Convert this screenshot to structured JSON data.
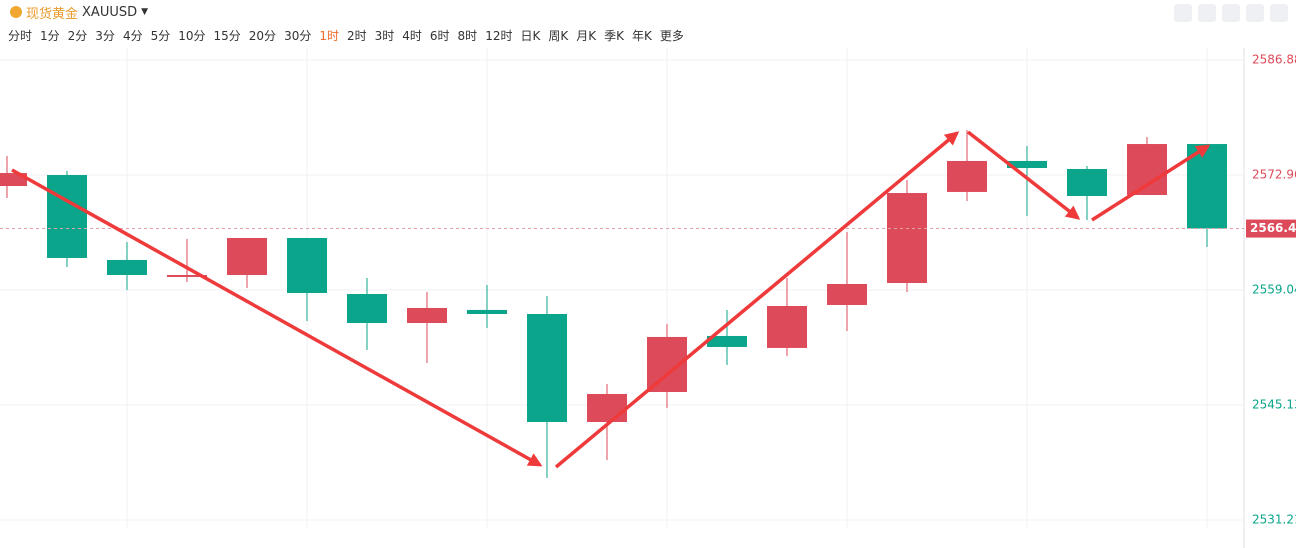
{
  "toolbar": {
    "symbol_name": "现货黄金",
    "symbol_code": "XAUUSD",
    "intervals": [
      "分时",
      "1分",
      "2分",
      "3分",
      "4分",
      "5分",
      "10分",
      "15分",
      "20分",
      "30分",
      "1时",
      "2时",
      "3时",
      "4时",
      "6时",
      "8时",
      "12时",
      "日K",
      "周K",
      "月K",
      "季K",
      "年K",
      "更多"
    ]
  },
  "chart_data": {
    "type": "candlestick",
    "categories": [
      null,
      null,
      null,
      null,
      null,
      null,
      null,
      null,
      null,
      null,
      null,
      null,
      null,
      null,
      null,
      null,
      null,
      null,
      null,
      null,
      null
    ],
    "open": [
      2571.63,
      2572.96,
      2562.68,
      2560.62,
      2560.86,
      2565.34,
      2558.56,
      2555.05,
      2556.63,
      2556.14,
      2543.07,
      2546.7,
      2553.48,
      2552.03,
      2557.23,
      2559.89,
      2570.91,
      2574.66,
      2573.69,
      2570.54,
      2576.71
    ],
    "high": [
      2575.26,
      2573.45,
      2564.86,
      2565.22,
      2565.34,
      2565.34,
      2560.5,
      2558.8,
      2559.65,
      2558.32,
      2547.67,
      2554.93,
      2556.63,
      2560.5,
      2566.06,
      2572.36,
      2578.41,
      2576.47,
      2574.05,
      2577.56,
      2576.71
    ],
    "low": [
      2570.18,
      2561.83,
      2559.04,
      2560.01,
      2559.29,
      2555.29,
      2551.79,
      2550.21,
      2554.45,
      2536.29,
      2538.47,
      2544.77,
      2549.97,
      2551.06,
      2554.08,
      2558.8,
      2569.82,
      2567.99,
      2567.52,
      2570.54,
      2564.25
    ],
    "close": [
      2573.2,
      2562.92,
      2560.86,
      2560.86,
      2565.34,
      2558.68,
      2555.05,
      2556.87,
      2556.14,
      2543.07,
      2546.46,
      2553.36,
      2552.15,
      2557.11,
      2559.77,
      2570.78,
      2574.66,
      2573.81,
      2570.42,
      2576.71,
      2566.48
    ],
    "up_color": "#dd4a5a",
    "down_color": "#0aa58a",
    "last_price": 2566.48,
    "ylim": [
      2530.24,
      2588.09
    ],
    "yticks": [
      2586.88,
      2572.96,
      2559.04,
      2545.13,
      2531.21
    ],
    "grid": true
  }
}
